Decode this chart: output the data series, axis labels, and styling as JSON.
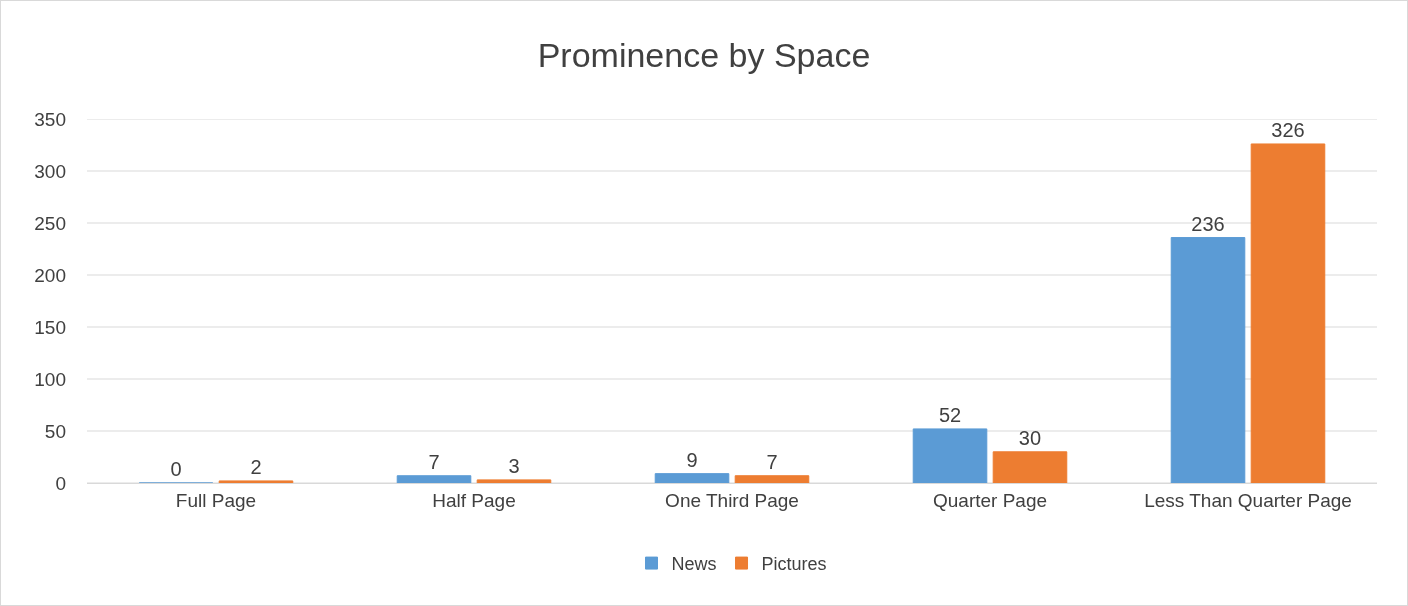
{
  "chart_data": {
    "type": "bar",
    "title": "Prominence by Space",
    "categories": [
      "Full Page",
      "Half Page",
      "One Third Page",
      "Quarter Page",
      "Less Than Quarter Page"
    ],
    "series": [
      {
        "name": "News",
        "color": "#5b9bd5",
        "values": [
          0,
          7,
          9,
          52,
          236
        ]
      },
      {
        "name": "Pictures",
        "color": "#ed7d31",
        "values": [
          2,
          3,
          7,
          30,
          326
        ]
      }
    ],
    "ylim": [
      0,
      350
    ],
    "yticks": [
      0,
      50,
      100,
      150,
      200,
      250,
      300,
      350
    ],
    "grid": "y",
    "legend": "bottom",
    "data_labels": true
  }
}
